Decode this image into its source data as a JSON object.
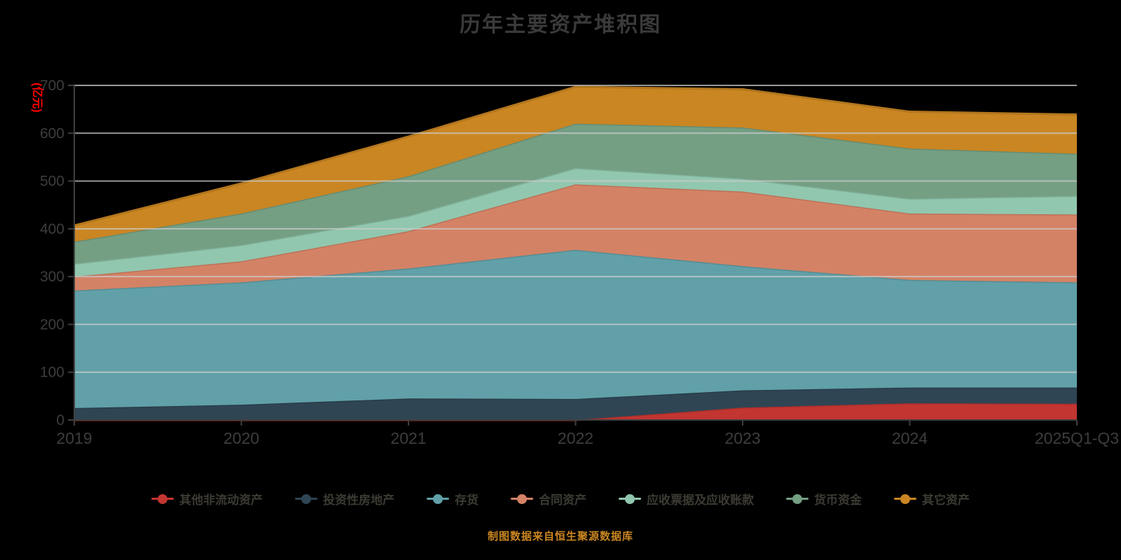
{
  "title": "历年主要资产堆积图",
  "footer": "制图数据来自恒生聚源数据库",
  "y_axis": {
    "name": "(亿元)",
    "name_color": "#ff0000",
    "tick_labels": [
      "0",
      "100",
      "200",
      "300",
      "400",
      "500",
      "600",
      "700"
    ],
    "min": 0,
    "max": 700,
    "interval": 100
  },
  "x_axis": {
    "categories": [
      "2019",
      "2020",
      "2021",
      "2022",
      "2023",
      "2024",
      "2025Q1-Q3"
    ]
  },
  "colors": {
    "background": "#000000",
    "title_text": "#3a3a3a",
    "axis_line": "#3f3f3f",
    "axis_label": "#3d3d3d",
    "gridline": "#cccccc",
    "legend_text": "#3c3b33",
    "footer_text": "#ca8622"
  },
  "chart_data": {
    "type": "area",
    "stacked": true,
    "title": "历年主要资产堆积图",
    "xlabel": "",
    "ylabel": "(亿元)",
    "ylim": [
      0,
      700
    ],
    "grid": true,
    "legend_position": "bottom",
    "categories": [
      "2019",
      "2020",
      "2021",
      "2022",
      "2023",
      "2024",
      "2025Q1-Q3"
    ],
    "series": [
      {
        "name": "其他非流动资产",
        "color": "#c23531",
        "values": [
          0,
          0,
          0,
          0,
          26,
          35,
          34
        ]
      },
      {
        "name": "投资性房地产",
        "color": "#2f4554",
        "values": [
          25,
          32,
          45,
          44,
          36,
          33,
          34
        ]
      },
      {
        "name": "存货",
        "color": "#61a0a8",
        "values": [
          246,
          256,
          272,
          312,
          260,
          225,
          220
        ]
      },
      {
        "name": "合同资产",
        "color": "#d48265",
        "values": [
          29,
          44,
          78,
          137,
          156,
          139,
          142
        ]
      },
      {
        "name": "应收票据及应收账款",
        "color": "#91c7ae",
        "values": [
          27,
          34,
          32,
          34,
          27,
          31,
          39
        ]
      },
      {
        "name": "货币资金",
        "color": "#749f83",
        "values": [
          46,
          66,
          83,
          93,
          107,
          105,
          88
        ]
      },
      {
        "name": "其它资产",
        "color": "#ca8622",
        "values": [
          34,
          63,
          83,
          77,
          80,
          77,
          82
        ]
      }
    ],
    "stacked_totals": [
      407,
      495,
      593,
      697,
      692,
      645,
      639
    ]
  }
}
